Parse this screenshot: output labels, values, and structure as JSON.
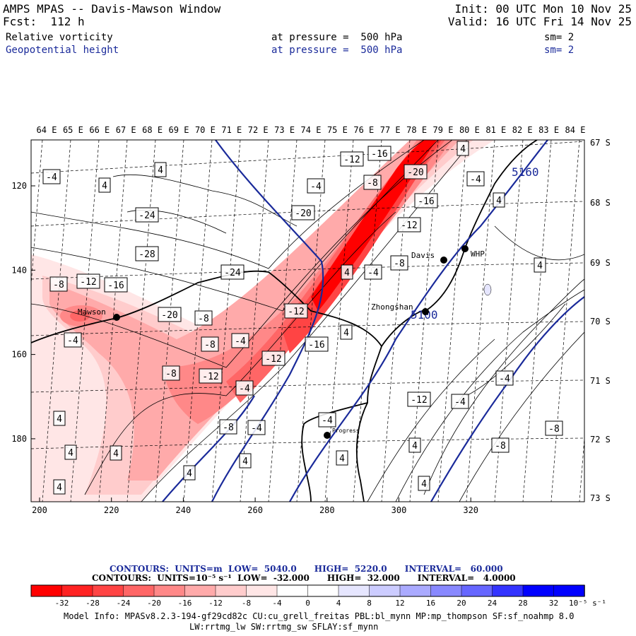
{
  "header": {
    "title": "AMPS MPAS -- Davis-Mawson Window",
    "fcst": "Fcst:  112 h",
    "init": "Init: 00 UTC Mon 10 Nov 25",
    "valid": "Valid: 16 UTC Fri 14 Nov 25",
    "field1_name": "Relative vorticity",
    "field1_level": "at pressure =  500 hPa",
    "field1_sm": "sm= 2",
    "field2_name": "Geopotential height",
    "field2_level": "at pressure =  500 hPa",
    "field2_sm": "sm= 2"
  },
  "map": {
    "longitude_labels": [
      "64 E",
      "65 E",
      "66 E",
      "67 E",
      "68 E",
      "69 E",
      "70 E",
      "71 E",
      "72 E",
      "73 E",
      "74 E",
      "75 E",
      "76 E",
      "77 E",
      "78 E",
      "79 E",
      "80 E",
      "81 E",
      "82 E",
      "83 E",
      "84 E"
    ],
    "latitude_labels": [
      "67 S",
      "68 S",
      "69 S",
      "70 S",
      "71 S",
      "72 S",
      "73 S"
    ],
    "x_ticks": [
      "200",
      "220",
      "240",
      "260",
      "280",
      "300",
      "320"
    ],
    "y_ticks": [
      "120",
      "140",
      "160",
      "180"
    ],
    "stations": [
      "Mawson",
      "Davis",
      "WHP",
      "Zhongshan",
      "Progress"
    ],
    "height_labels": [
      "5160",
      "5100"
    ],
    "vorticity_labels": [
      "-4",
      "4",
      "4",
      "-4",
      "-8",
      "-12",
      "-16",
      "-20",
      "-24",
      "-28",
      "-24",
      "-20",
      "-16",
      "-12",
      "-8",
      "-4",
      "4",
      "-8",
      "-12",
      "-16",
      "-20",
      "-8",
      "-12",
      "-4",
      "-8",
      "-12",
      "-16",
      "4",
      "-4",
      "-8",
      "-12",
      "-4",
      "-8",
      "-4",
      "4",
      "4",
      "4",
      "4",
      "4",
      "-4",
      "4",
      "4",
      "-8",
      "-4",
      "-4",
      "4",
      "4",
      "-4",
      "-12",
      "-8",
      "4",
      "4",
      "4",
      "4"
    ]
  },
  "legend": {
    "height_line": "CONTOURS:  UNITS=m  LOW=  5040.0      HIGH=  5220.0      INTERVAL=   60.000",
    "vort_line": "CONTOURS:  UNITS=10⁻⁵ s⁻¹  LOW=  -32.000      HIGH=  32.000      INTERVAL=   4.0000",
    "colorbar_ticks": [
      "-32",
      "-28",
      "-24",
      "-20",
      "-16",
      "-12",
      "-8",
      "-4",
      "0",
      "4",
      "8",
      "12",
      "16",
      "20",
      "24",
      "28",
      "32"
    ],
    "colorbar_units": "10⁻⁵ s⁻¹",
    "colorbar_colors": [
      "#ff0000",
      "#ff2222",
      "#ff4444",
      "#ff6666",
      "#ff8888",
      "#ffaaaa",
      "#ffcccc",
      "#ffe6e6",
      "#ffffff",
      "#ffffff",
      "#e6e6ff",
      "#ccccff",
      "#aaaaff",
      "#8888ff",
      "#6666ff",
      "#3333ff",
      "#0000ff",
      "#0000ff"
    ]
  },
  "footer": {
    "model_info": "Model Info: MPASv8.2.3-194-gf29cd82c CU:cu_grell_freitas PBL:bl_mynn MP:mp_thompson SF:sf_noahmp 8.0",
    "model_info2": "LW:rrtmg_lw SW:rrtmg_sw SFLAY:sf_mynn"
  },
  "colors": {
    "contour_blue": "#1a2a9a",
    "vort_red": "#ff0000",
    "vort_blue": "#0000ff"
  }
}
